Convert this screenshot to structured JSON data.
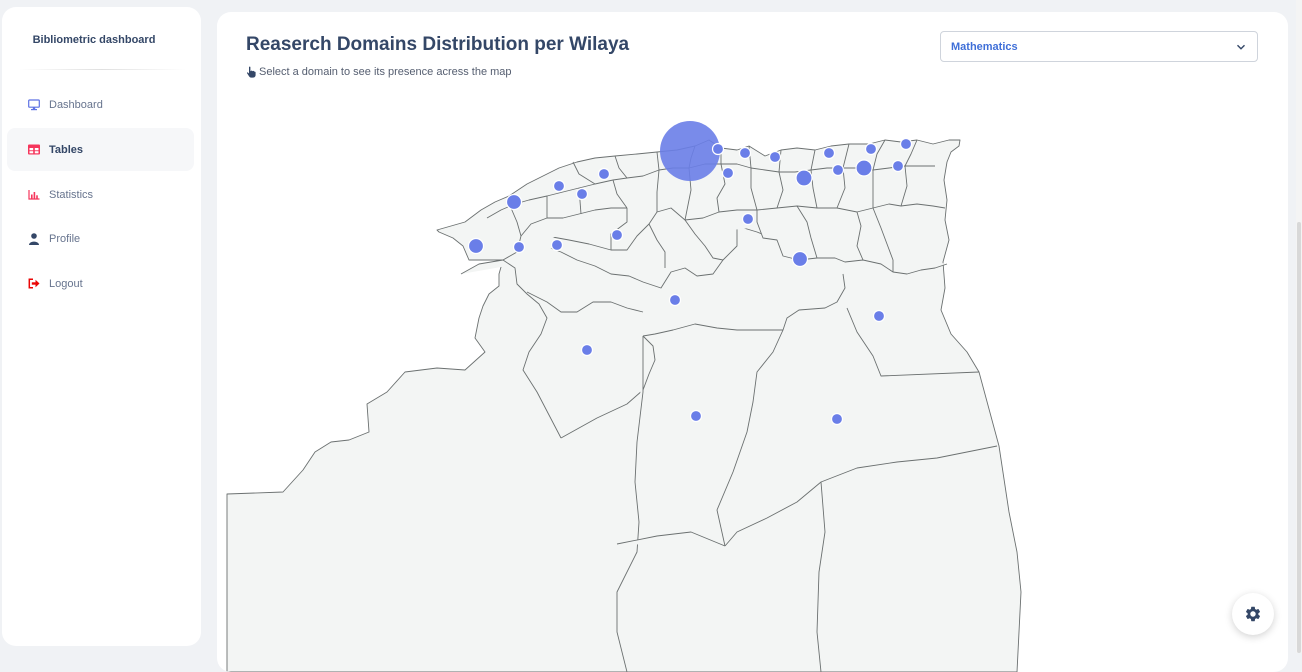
{
  "sidebar": {
    "brand": "Bibliometric dashboard",
    "items": [
      {
        "label": "Dashboard",
        "icon": "monitor-icon"
      },
      {
        "label": "Tables",
        "icon": "table-icon",
        "active": true
      },
      {
        "label": "Statistics",
        "icon": "chart-icon"
      },
      {
        "label": "Profile",
        "icon": "user-icon"
      },
      {
        "label": "Logout",
        "icon": "logout-icon"
      }
    ]
  },
  "main": {
    "title": "Reaserch Domains Distribution per Wilaya",
    "subtitle": "Select a domain to see its presence acress the map",
    "domain_select": {
      "value": "Mathematics"
    }
  },
  "colors": {
    "accent": "#3f6fd8",
    "bubble": "#6a7ee8",
    "map_fill": "#f3f5f4",
    "map_border": "#6b7070",
    "logout": "#ea0606",
    "tables": "#f5365c"
  }
}
